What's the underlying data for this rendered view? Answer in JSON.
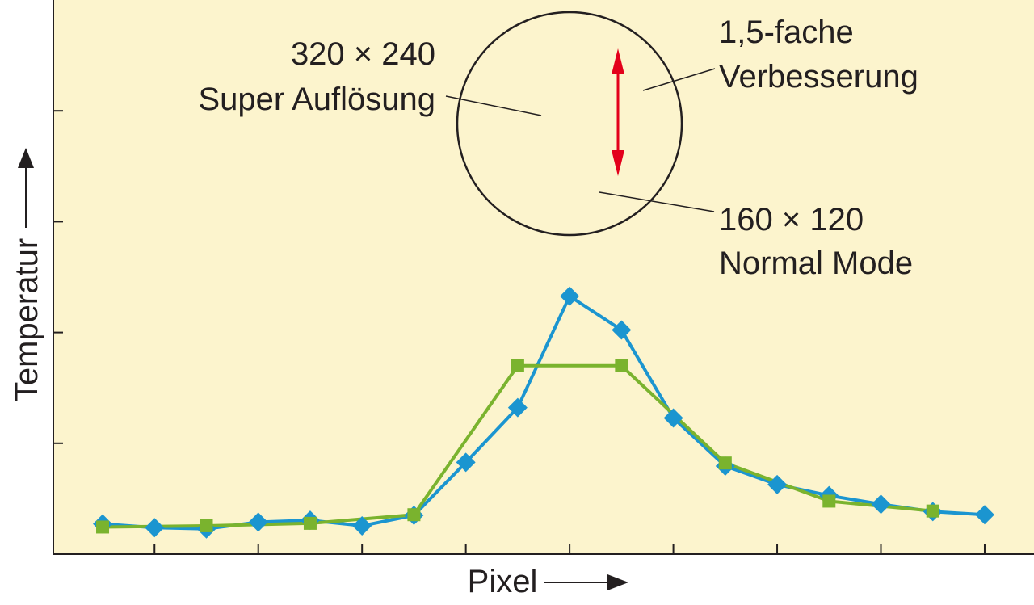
{
  "chart_data": {
    "type": "line",
    "xlabel": "Pixel",
    "ylabel": "Temperatur",
    "x": [
      1,
      2,
      3,
      4,
      5,
      6,
      7,
      8,
      9,
      10,
      11,
      12,
      13,
      14,
      15,
      16,
      17,
      18
    ],
    "xlim": [
      0.05,
      18.95
    ],
    "ylim": [
      0,
      90
    ],
    "y_ticks_count": 4,
    "x_ticks_count": 9,
    "grid": false,
    "background": "#fcf4cd",
    "series": [
      {
        "x": [
          1,
          2,
          3,
          4,
          5,
          6,
          7,
          8,
          9,
          10,
          11,
          12,
          13,
          14,
          15,
          16,
          17,
          18
        ],
        "values": [
          4.9,
          4.3,
          4.1,
          5.2,
          5.5,
          4.6,
          6.3,
          14.9,
          23.8,
          41.9,
          36.4,
          22.1,
          14.3,
          11.3,
          9.5,
          8.1,
          6.9,
          6.4
        ],
        "color": "#1b95d0",
        "marker": "diamond"
      },
      {
        "x": [
          1,
          3,
          5,
          7,
          9,
          11,
          13,
          15,
          17
        ],
        "values": [
          4.4,
          4.6,
          5.0,
          6.4,
          30.6,
          30.6,
          14.8,
          8.6,
          7.0
        ],
        "color": "#7ab32e",
        "marker": "square"
      }
    ],
    "annotations": [
      {
        "lines": [
          "320 × 240",
          "Super Auflösung"
        ]
      },
      {
        "lines": [
          "1,5-fache",
          "Verbesserung"
        ]
      },
      {
        "lines": [
          "160 × 120",
          "Normal Mode"
        ]
      }
    ],
    "arrow_color": "#e3001b"
  }
}
